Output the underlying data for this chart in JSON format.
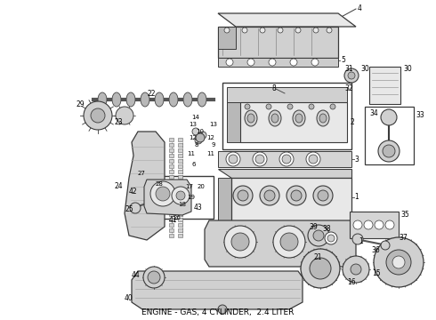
{
  "title": "ENGINE - GAS, 4 CYLINDER,  2.4 LITER",
  "background_color": "#ffffff",
  "text_color": "#000000",
  "fig_width": 4.9,
  "fig_height": 3.6,
  "dpi": 100,
  "title_fontsize": 6.5,
  "line_color": "#3a3a3a",
  "fill_light": "#e8e8e8",
  "fill_mid": "#d0d0d0",
  "fill_dark": "#b8b8b8"
}
